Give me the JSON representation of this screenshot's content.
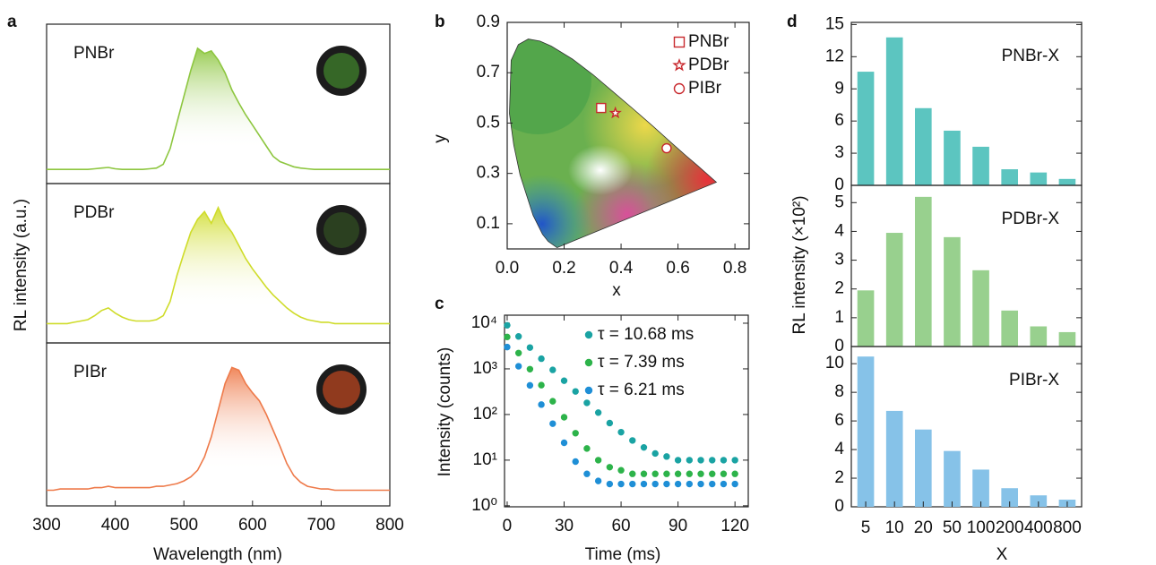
{
  "chart_data": [
    {
      "type": "line",
      "label": "a",
      "xlabel": "Wavelength (nm)",
      "ylabel": "RL intensity (a.u.)",
      "xlim": [
        300,
        800
      ],
      "xticks": [
        300,
        400,
        500,
        600,
        700,
        800
      ],
      "ylim": [
        0,
        1.1
      ],
      "x": [
        300,
        310,
        320,
        330,
        340,
        350,
        360,
        370,
        380,
        390,
        400,
        410,
        420,
        430,
        440,
        450,
        460,
        470,
        480,
        490,
        500,
        510,
        520,
        530,
        540,
        550,
        560,
        570,
        580,
        590,
        600,
        610,
        620,
        630,
        640,
        650,
        660,
        670,
        680,
        690,
        700,
        710,
        720,
        730,
        740,
        750,
        760,
        770,
        780,
        790,
        800
      ],
      "series": [
        {
          "name": "PNBr",
          "color": "#8dc63f",
          "values": [
            0.04,
            0.04,
            0.04,
            0.04,
            0.04,
            0.04,
            0.04,
            0.045,
            0.05,
            0.055,
            0.045,
            0.04,
            0.04,
            0.04,
            0.04,
            0.045,
            0.05,
            0.08,
            0.2,
            0.4,
            0.6,
            0.8,
            0.97,
            0.93,
            0.95,
            0.88,
            0.78,
            0.65,
            0.55,
            0.46,
            0.38,
            0.3,
            0.22,
            0.14,
            0.1,
            0.08,
            0.06,
            0.05,
            0.045,
            0.04,
            0.04,
            0.04,
            0.04,
            0.04,
            0.04,
            0.04,
            0.04,
            0.04,
            0.04,
            0.04,
            0.04
          ]
        },
        {
          "name": "PDBr",
          "color": "#cfdc2a",
          "values": [
            0.08,
            0.08,
            0.08,
            0.08,
            0.09,
            0.1,
            0.11,
            0.14,
            0.18,
            0.2,
            0.16,
            0.13,
            0.11,
            0.1,
            0.1,
            0.1,
            0.11,
            0.14,
            0.25,
            0.45,
            0.62,
            0.78,
            0.88,
            0.94,
            0.85,
            0.97,
            0.85,
            0.78,
            0.68,
            0.58,
            0.5,
            0.43,
            0.36,
            0.3,
            0.25,
            0.2,
            0.16,
            0.13,
            0.11,
            0.1,
            0.09,
            0.09,
            0.08,
            0.08,
            0.08,
            0.08,
            0.08,
            0.08,
            0.08,
            0.08,
            0.08
          ]
        },
        {
          "name": "PIBr",
          "color": "#ee7a4a",
          "values": [
            0.05,
            0.05,
            0.06,
            0.06,
            0.06,
            0.06,
            0.06,
            0.07,
            0.07,
            0.08,
            0.07,
            0.07,
            0.07,
            0.07,
            0.07,
            0.07,
            0.08,
            0.08,
            0.09,
            0.1,
            0.12,
            0.15,
            0.2,
            0.3,
            0.45,
            0.65,
            0.85,
            0.97,
            0.95,
            0.85,
            0.78,
            0.72,
            0.62,
            0.5,
            0.38,
            0.25,
            0.16,
            0.11,
            0.08,
            0.07,
            0.06,
            0.06,
            0.05,
            0.05,
            0.05,
            0.05,
            0.05,
            0.05,
            0.05,
            0.05,
            0.05
          ]
        }
      ]
    },
    {
      "type": "scatter",
      "label": "b",
      "xlabel": "x",
      "ylabel": "y",
      "xlim": [
        0,
        0.85
      ],
      "ylim": [
        0,
        0.9
      ],
      "xticks": [
        {
          "value": 0,
          "label": "0.0"
        },
        0.2,
        0.4,
        0.6,
        0.8
      ],
      "yticks": [
        0.1,
        0.3,
        0.5,
        0.7,
        0.9
      ],
      "legend": "upper right",
      "series": [
        {
          "name": "PNBr",
          "color": "#c8282d",
          "marker": "square",
          "x": [
            0.33
          ],
          "values": [
            0.56
          ]
        },
        {
          "name": "PDBr",
          "color": "#c8282d",
          "marker": "star",
          "x": [
            0.38
          ],
          "values": [
            0.54
          ]
        },
        {
          "name": "PIBr",
          "color": "#c8282d",
          "marker": "circle",
          "x": [
            0.56
          ],
          "values": [
            0.4
          ]
        }
      ]
    },
    {
      "type": "scatter",
      "label": "c",
      "xlabel": "Time (ms)",
      "ylabel": "Intensity (counts)",
      "log_y": true,
      "xlim": [
        -1.4,
        127
      ],
      "ylim": [
        0.95,
        15000
      ],
      "xticks": [
        0,
        30,
        60,
        90,
        120
      ],
      "yticks": [
        {
          "value": 1,
          "label": "10⁰"
        },
        {
          "value": 10,
          "label": "10¹"
        },
        {
          "value": 100,
          "label": "10²"
        },
        {
          "value": 1000,
          "label": "10³"
        },
        {
          "value": 10000,
          "label": "10⁴"
        }
      ],
      "legend": "upper right",
      "x": [
        0,
        6,
        12,
        18,
        24,
        30,
        36,
        42,
        48,
        54,
        60,
        66,
        72,
        78,
        84,
        90,
        96,
        102,
        108,
        114,
        120
      ],
      "series": [
        {
          "name": "τ = 10.68 ms",
          "color": "#1aa3a3",
          "marker": "circle",
          "values": [
            9000,
            5130,
            2930,
            1670,
            950,
            550,
            320,
            180,
            110,
            65,
            41,
            27,
            19,
            14,
            12,
            10,
            10,
            10,
            10,
            10,
            10
          ]
        },
        {
          "name": "τ = 7.39 ms",
          "color": "#2db34a",
          "marker": "circle",
          "values": [
            5000,
            2220,
            985,
            440,
            195,
            87,
            39,
            18,
            10,
            7,
            6,
            5,
            5,
            5,
            5,
            5,
            5,
            5,
            5,
            5,
            5
          ]
        },
        {
          "name": "τ = 6.21 ms",
          "color": "#1f8fd6",
          "marker": "circle",
          "values": [
            3000,
            1140,
            435,
            165,
            63,
            24,
            9.3,
            5,
            3.5,
            3,
            3,
            3,
            3,
            3,
            3,
            3,
            3,
            3,
            3,
            3,
            3
          ]
        }
      ]
    },
    {
      "type": "bar",
      "label": "d",
      "xlabel": "X",
      "ylabel": "RL intensity (×10²)",
      "categories": [
        "5",
        "10",
        "20",
        "50",
        "100",
        "200",
        "400",
        "800"
      ],
      "series": [
        {
          "name": "PNBr-X",
          "color": "#5cc5c0",
          "values": [
            10.6,
            13.8,
            7.2,
            5.1,
            3.6,
            1.5,
            1.2,
            0.6
          ],
          "ylim": [
            0,
            15.2
          ],
          "yticks": [
            0,
            3,
            6,
            9,
            12,
            15
          ]
        },
        {
          "name": "PDBr-X",
          "color": "#98d08e",
          "values": [
            1.95,
            3.95,
            5.2,
            3.8,
            2.65,
            1.25,
            0.7,
            0.5
          ],
          "ylim": [
            0,
            5.6
          ],
          "yticks": [
            0,
            1,
            2,
            3,
            4,
            5
          ]
        },
        {
          "name": "PIBr-X",
          "color": "#86c2e8",
          "values": [
            10.5,
            6.7,
            5.4,
            3.9,
            2.6,
            1.3,
            0.8,
            0.5
          ],
          "ylim": [
            0,
            11.2
          ],
          "yticks": [
            0,
            2,
            4,
            6,
            8,
            10
          ]
        }
      ]
    }
  ]
}
